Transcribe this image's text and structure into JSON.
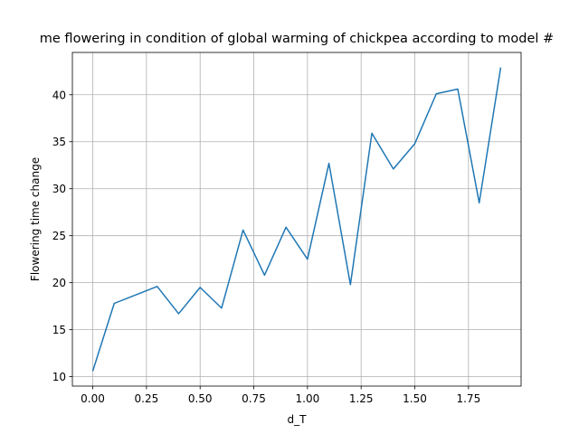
{
  "chart_data": {
    "type": "line",
    "title": "me flowering in condition of global warming of chickpea according to model #",
    "xlabel": "d_T",
    "ylabel": "Flowering time change",
    "xlim": [
      -0.095,
      1.995
    ],
    "ylim": [
      9.0,
      44.5
    ],
    "grid": true,
    "xticks": [
      0.0,
      0.25,
      0.5,
      0.75,
      1.0,
      1.25,
      1.5,
      1.75
    ],
    "xtick_labels": [
      "0.00",
      "0.25",
      "0.50",
      "0.75",
      "1.00",
      "1.25",
      "1.50",
      "1.75"
    ],
    "yticks": [
      10,
      15,
      20,
      25,
      30,
      35,
      40
    ],
    "ytick_labels": [
      "10",
      "15",
      "20",
      "25",
      "30",
      "35",
      "40"
    ],
    "series": [
      {
        "color": "#1f77b4",
        "x": [
          0.0,
          0.1,
          0.2,
          0.3,
          0.4,
          0.5,
          0.6,
          0.7,
          0.8,
          0.9,
          1.0,
          1.1,
          1.2,
          1.3,
          1.4,
          1.5,
          1.6,
          1.7,
          1.8,
          1.9
        ],
        "y": [
          10.6,
          17.8,
          18.7,
          19.6,
          16.7,
          19.5,
          17.3,
          25.6,
          20.8,
          25.9,
          22.5,
          32.7,
          19.8,
          35.9,
          32.1,
          34.8,
          40.1,
          40.6,
          28.5,
          42.9
        ]
      }
    ]
  }
}
